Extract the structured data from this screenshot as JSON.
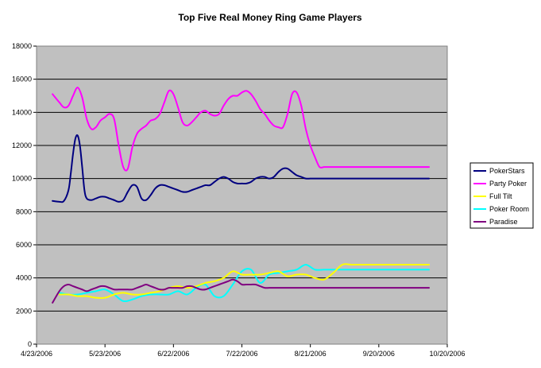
{
  "chart_data": {
    "type": "line",
    "title": "Top Five Real Money Ring Game Players",
    "xlabel": "",
    "ylabel": "",
    "x_ticks": [
      "4/23/2006",
      "5/23/2006",
      "6/22/2006",
      "7/22/2006",
      "8/21/2006",
      "9/20/2006",
      "10/20/2006"
    ],
    "x_domain_days": [
      0,
      180
    ],
    "ylim": [
      0,
      18000
    ],
    "y_ticks": [
      "0",
      "2000",
      "4000",
      "6000",
      "8000",
      "10000",
      "12000",
      "14000",
      "16000",
      "18000"
    ],
    "grid": "horizontal",
    "background": "#c0c0c0",
    "legend_position": "right",
    "series": [
      {
        "name": "PokerStars",
        "color": "#000080",
        "x": [
          7,
          10,
          12,
          14,
          15,
          16,
          17,
          18,
          19,
          20,
          21,
          22,
          24,
          26,
          28,
          30,
          32,
          34,
          36,
          38,
          40,
          42,
          44,
          46,
          48,
          50,
          52,
          54,
          56,
          58,
          60,
          62,
          64,
          66,
          68,
          70,
          72,
          74,
          76,
          78,
          80,
          82,
          84,
          86,
          88,
          90,
          92,
          94,
          96,
          98,
          100,
          102,
          104,
          106,
          108,
          110,
          112,
          114,
          116,
          118,
          120,
          122,
          124,
          126,
          128,
          130,
          132,
          134,
          136,
          138,
          140,
          142,
          144,
          146,
          148,
          150,
          152,
          154,
          156,
          158,
          160,
          162,
          164,
          166,
          168,
          170,
          172
        ],
        "y": [
          8650,
          8600,
          8650,
          9300,
          10300,
          11500,
          12400,
          12600,
          12000,
          10700,
          9300,
          8800,
          8700,
          8800,
          8900,
          8900,
          8800,
          8700,
          8600,
          8700,
          9200,
          9600,
          9500,
          8800,
          8700,
          9000,
          9400,
          9600,
          9600,
          9500,
          9400,
          9300,
          9200,
          9200,
          9300,
          9400,
          9500,
          9600,
          9600,
          9800,
          10000,
          10100,
          10000,
          9800,
          9700,
          9700,
          9700,
          9800,
          10000,
          10100,
          10100,
          10000,
          10100,
          10400,
          10600,
          10600,
          10400,
          10200,
          10100,
          10000,
          10000,
          10000,
          10000,
          10000,
          10000,
          10000,
          10000,
          10000,
          10000,
          10000,
          10000,
          10000,
          10000,
          10000,
          10000,
          10000,
          10000,
          10000,
          10000,
          10000,
          10000,
          10000,
          10000,
          10000,
          10000,
          10000,
          10000
        ]
      },
      {
        "name": "Party Poker",
        "color": "#ff00ff",
        "x": [
          7,
          10,
          12,
          14,
          16,
          18,
          20,
          22,
          24,
          26,
          28,
          30,
          32,
          34,
          36,
          38,
          40,
          42,
          44,
          46,
          48,
          50,
          52,
          54,
          56,
          58,
          60,
          62,
          64,
          66,
          68,
          70,
          72,
          74,
          76,
          78,
          80,
          82,
          84,
          86,
          88,
          90,
          92,
          94,
          96,
          98,
          100,
          102,
          104,
          106,
          108,
          110,
          112,
          114,
          116,
          118,
          120,
          122,
          124,
          126,
          128,
          130,
          132,
          134,
          136,
          138,
          140,
          142,
          144,
          146,
          148,
          150,
          152,
          154,
          156,
          158,
          160,
          162,
          164,
          166,
          168,
          170,
          172
        ],
        "y": [
          15100,
          14600,
          14300,
          14400,
          15000,
          15500,
          14900,
          13600,
          13000,
          13100,
          13500,
          13700,
          13900,
          13600,
          12000,
          10700,
          10600,
          11900,
          12700,
          13000,
          13200,
          13500,
          13600,
          13900,
          14600,
          15300,
          15100,
          14300,
          13400,
          13200,
          13400,
          13700,
          14000,
          14100,
          13900,
          13800,
          13900,
          14400,
          14800,
          15000,
          15000,
          15200,
          15300,
          15100,
          14700,
          14200,
          13900,
          13500,
          13200,
          13100,
          13100,
          13900,
          15100,
          15200,
          14400,
          13000,
          12000,
          11300,
          10700,
          10700,
          10700,
          10700,
          10700,
          10700,
          10700,
          10700,
          10700,
          10700,
          10700,
          10700,
          10700,
          10700,
          10700,
          10700,
          10700,
          10700,
          10700,
          10700,
          10700,
          10700,
          10700,
          10700,
          10700
        ]
      },
      {
        "name": "Full Tilt",
        "color": "#ffff00",
        "x": [
          10,
          14,
          18,
          22,
          26,
          30,
          34,
          38,
          42,
          46,
          50,
          54,
          58,
          62,
          66,
          70,
          74,
          78,
          82,
          86,
          90,
          94,
          98,
          102,
          106,
          110,
          114,
          118,
          122,
          126,
          130,
          134,
          138,
          142,
          146,
          150,
          154,
          158,
          162,
          166,
          170,
          172
        ],
        "y": [
          3000,
          3000,
          2900,
          2900,
          2800,
          2800,
          3000,
          3100,
          3000,
          3000,
          3100,
          3200,
          3400,
          3500,
          3400,
          3500,
          3700,
          3800,
          4000,
          4400,
          4200,
          4200,
          4200,
          4300,
          4400,
          4100,
          4200,
          4200,
          4000,
          3900,
          4300,
          4800,
          4800,
          4800,
          4800,
          4800,
          4800,
          4800,
          4800,
          4800,
          4800,
          4800
        ]
      },
      {
        "name": "Poker Room",
        "color": "#00ffff",
        "x": [
          10,
          14,
          18,
          22,
          26,
          30,
          34,
          38,
          42,
          46,
          50,
          54,
          58,
          62,
          66,
          70,
          74,
          78,
          82,
          86,
          90,
          94,
          98,
          102,
          106,
          110,
          114,
          118,
          122,
          126,
          130,
          134,
          138,
          142,
          146,
          150,
          154,
          158,
          162,
          166,
          170,
          172
        ],
        "y": [
          3100,
          3000,
          3000,
          3100,
          3200,
          3300,
          3000,
          2600,
          2700,
          2900,
          3000,
          3000,
          3000,
          3200,
          3000,
          3400,
          3600,
          2900,
          2900,
          3600,
          4400,
          4500,
          3700,
          4200,
          4300,
          4400,
          4500,
          4800,
          4500,
          4500,
          4500,
          4500,
          4500,
          4500,
          4500,
          4500,
          4500,
          4500,
          4500,
          4500,
          4500,
          4500
        ]
      },
      {
        "name": "Paradise",
        "color": "#800080",
        "x": [
          7,
          10,
          12,
          14,
          16,
          18,
          20,
          22,
          24,
          26,
          28,
          30,
          32,
          34,
          36,
          38,
          40,
          42,
          44,
          46,
          48,
          50,
          52,
          54,
          56,
          58,
          60,
          62,
          64,
          66,
          68,
          70,
          72,
          74,
          76,
          78,
          80,
          82,
          84,
          86,
          88,
          90,
          92,
          94,
          96,
          98,
          100,
          102,
          104,
          106,
          108,
          110,
          112,
          114,
          116,
          118,
          120,
          122,
          124,
          126,
          128,
          130,
          132,
          134,
          136,
          138,
          140,
          142,
          144,
          146,
          148,
          150,
          152,
          154,
          156,
          158,
          160,
          162,
          164,
          166,
          168,
          170,
          172
        ],
        "y": [
          2500,
          3200,
          3500,
          3600,
          3500,
          3400,
          3300,
          3200,
          3300,
          3400,
          3500,
          3500,
          3400,
          3300,
          3300,
          3300,
          3300,
          3300,
          3400,
          3500,
          3600,
          3500,
          3400,
          3300,
          3300,
          3400,
          3400,
          3400,
          3400,
          3500,
          3500,
          3400,
          3300,
          3300,
          3400,
          3500,
          3600,
          3700,
          3800,
          3900,
          3800,
          3600,
          3600,
          3600,
          3600,
          3500,
          3400,
          3400,
          3400,
          3400,
          3400,
          3400,
          3400,
          3400,
          3400,
          3400,
          3400,
          3400,
          3400,
          3400,
          3400,
          3400,
          3400,
          3400,
          3400,
          3400,
          3400,
          3400,
          3400,
          3400,
          3400,
          3400,
          3400,
          3400,
          3400,
          3400,
          3400,
          3400,
          3400,
          3400,
          3400,
          3400,
          3400
        ]
      }
    ]
  }
}
